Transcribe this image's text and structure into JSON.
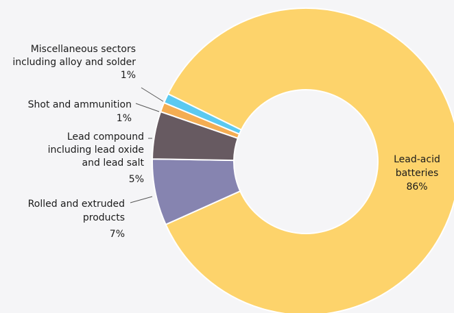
{
  "chart_data": {
    "type": "pie",
    "variant": "donut",
    "slices": [
      {
        "label": "Lead-acid batteries",
        "value": 86,
        "percent_label": "86%",
        "color": "#fdd36b"
      },
      {
        "label": "Rolled and extruded products",
        "value": 7,
        "percent_label": "7%",
        "color": "#8684b0"
      },
      {
        "label": "Lead compound including lead oxide and lead salt",
        "value": 5,
        "percent_label": "5%",
        "color": "#675a61"
      },
      {
        "label": "Shot and ammunition",
        "value": 1,
        "percent_label": "1%",
        "color": "#f4ad52"
      },
      {
        "label": "Miscellaneous sectors including alloy and solder",
        "value": 1,
        "percent_label": "1%",
        "color": "#5bc9f0"
      }
    ],
    "labels": {
      "lead_acid": [
        "Lead-acid",
        "batteries",
        "86%"
      ],
      "rolled": [
        "Rolled and extruded",
        "products",
        "7%"
      ],
      "compound": [
        "Lead compound",
        "including lead oxide",
        "and lead salt",
        "5%"
      ],
      "shot": [
        "Shot and ammunition",
        "1%"
      ],
      "misc": [
        "Miscellaneous sectors",
        "including alloy and solder",
        "1%"
      ]
    },
    "title": "",
    "legend": "none"
  }
}
